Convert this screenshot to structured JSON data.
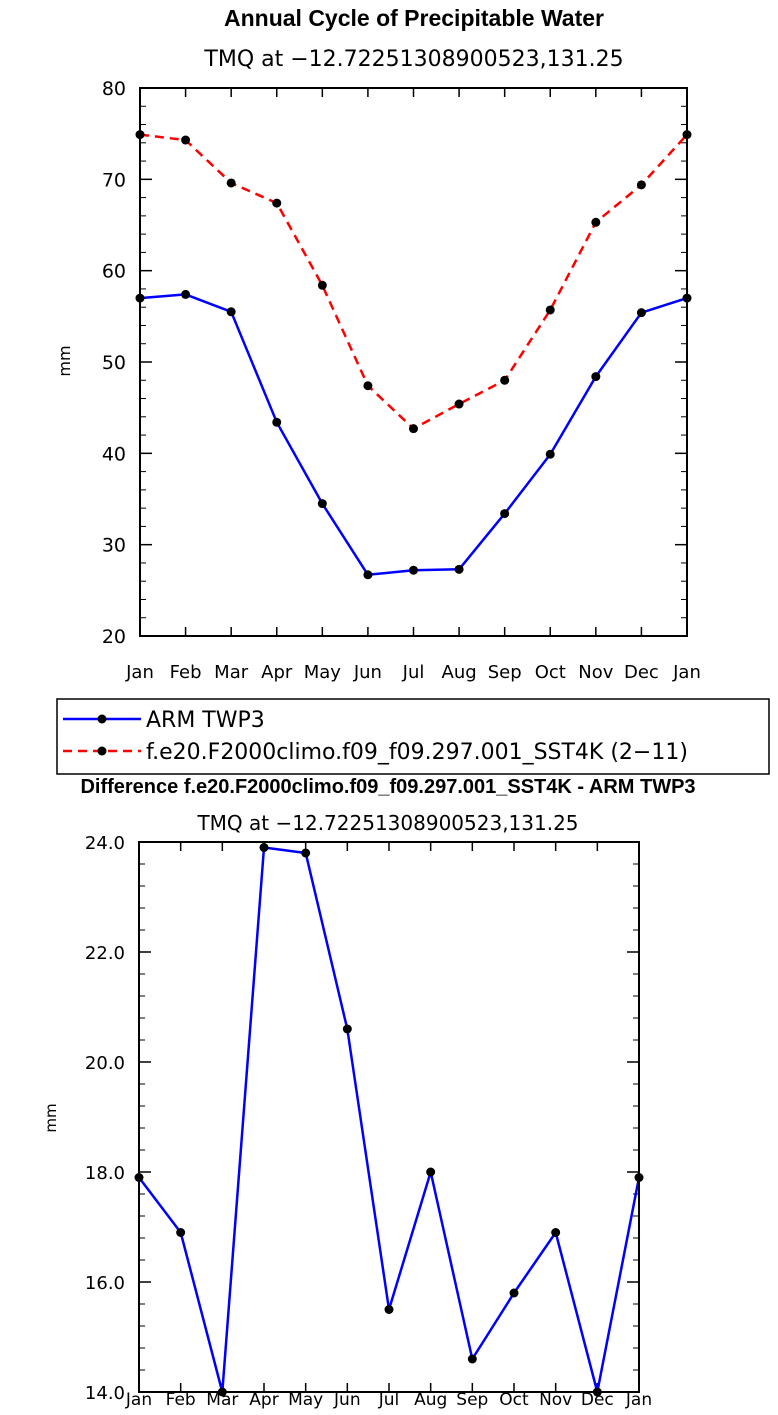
{
  "chart_data": [
    {
      "type": "line",
      "title": "Annual Cycle of Precipitable Water",
      "subtitle": "TMQ at −12.72251308900523,131.25",
      "xlabel": "",
      "ylabel": "mm",
      "ylim": [
        20,
        80
      ],
      "yticks": [
        "20",
        "30",
        "40",
        "50",
        "60",
        "70",
        "80"
      ],
      "categories": [
        "Jan",
        "Feb",
        "Mar",
        "Apr",
        "May",
        "Jun",
        "Jul",
        "Aug",
        "Sep",
        "Oct",
        "Nov",
        "Dec",
        "Jan"
      ],
      "legend_position": "below",
      "series": [
        {
          "name": "ARM TWP3",
          "color": "#0000ff",
          "dash": "solid",
          "values": [
            57.0,
            57.4,
            55.5,
            43.4,
            34.5,
            26.7,
            27.2,
            27.3,
            33.4,
            39.9,
            48.4,
            55.4,
            57.0
          ]
        },
        {
          "name": "f.e20.F2000climo.f09_f09.297.001_SST4K (2−11)",
          "color": "#ff0000",
          "dash": "dashed",
          "values": [
            74.9,
            74.3,
            69.6,
            67.4,
            58.4,
            47.4,
            42.7,
            45.4,
            48.0,
            55.7,
            65.3,
            69.4,
            74.9
          ]
        }
      ]
    },
    {
      "type": "line",
      "title": "Difference f.e20.F2000climo.f09_f09.297.001_SST4K - ARM TWP3",
      "subtitle": "TMQ at −12.72251308900523,131.25",
      "xlabel": "",
      "ylabel": "mm",
      "ylim": [
        14,
        24
      ],
      "yticks": [
        "14.0",
        "16.0",
        "18.0",
        "20.0",
        "22.0",
        "24.0"
      ],
      "categories": [
        "Jan",
        "Feb",
        "Mar",
        "Apr",
        "May",
        "Jun",
        "Jul",
        "Aug",
        "Sep",
        "Oct",
        "Nov",
        "Dec",
        "Jan"
      ],
      "series": [
        {
          "color": "#0000ff",
          "dash": "solid",
          "values": [
            17.9,
            16.9,
            14.0,
            23.9,
            23.8,
            20.6,
            15.5,
            18.0,
            14.6,
            15.8,
            16.9,
            14.0,
            17.9
          ]
        }
      ]
    }
  ]
}
